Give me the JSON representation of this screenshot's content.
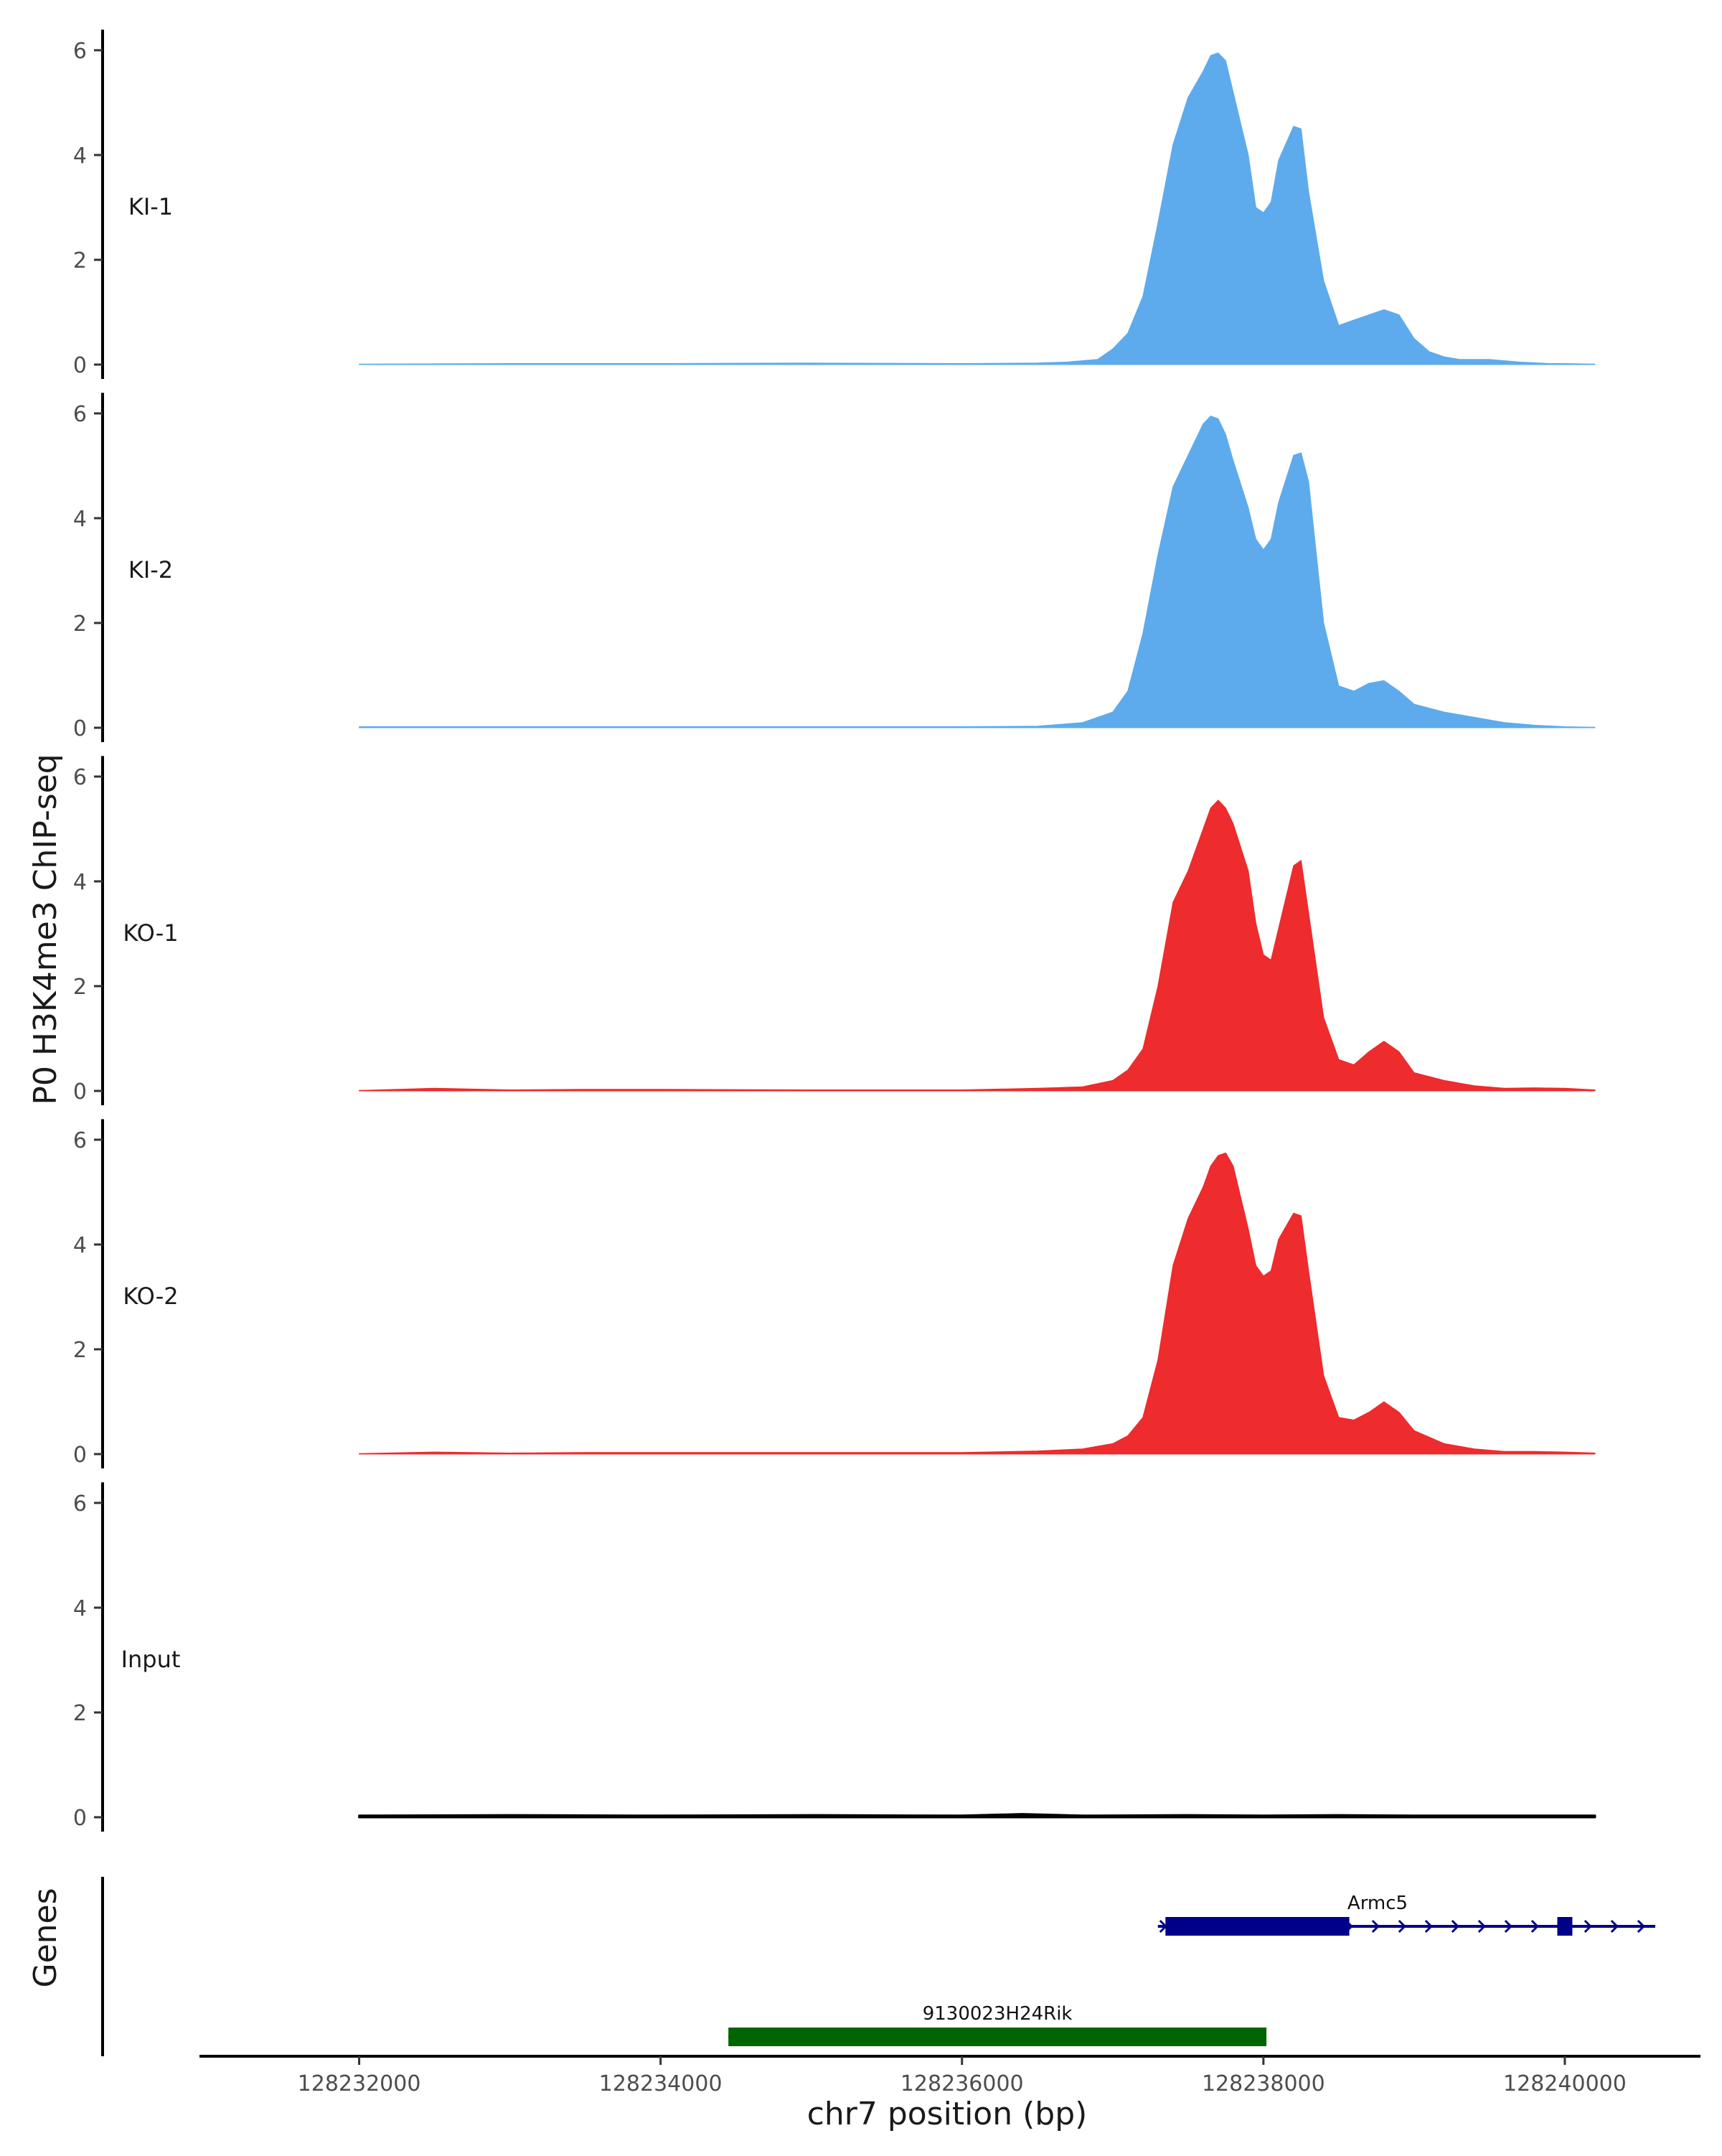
{
  "chart_data": {
    "type": "area",
    "title": "",
    "ylabel": "P0 H3K4me3 ChIP-seq",
    "xlabel": "chr7 position (bp)",
    "genes_label": "Genes",
    "xlim": [
      128230950,
      128240900
    ],
    "ylim": [
      0,
      6.2
    ],
    "x_ticks": [
      128232000,
      128234000,
      128236000,
      128238000,
      128240000
    ],
    "x_tick_labels": [
      "128232000",
      "128234000",
      "128236000",
      "128238000",
      "128240000"
    ],
    "y_ticks": [
      0,
      2,
      4,
      6
    ],
    "y_tick_labels": [
      "0",
      "2",
      "4",
      "6"
    ],
    "colors": {
      "KI": "#5dabec",
      "KO": "#ee2b2d",
      "Input": "#000000",
      "gene_blue": "#00008b",
      "gene_green": "#006400"
    },
    "series": [
      {
        "name": "KI-1",
        "color": "#5dabec",
        "x": [
          128232000,
          128233000,
          128234000,
          128235000,
          128236000,
          128236500,
          128236700,
          128236900,
          128237000,
          128237100,
          128237200,
          128237300,
          128237400,
          128237500,
          128237600,
          128237650,
          128237700,
          128237750,
          128237800,
          128237900,
          128237950,
          128238000,
          128238050,
          128238100,
          128238200,
          128238250,
          128238300,
          128238400,
          128238500,
          128238600,
          128238700,
          128238800,
          128238900,
          128239000,
          128239100,
          128239200,
          128239300,
          128239500,
          128239700,
          128239900,
          128240000,
          128240200
        ],
        "values": [
          0.01,
          0.02,
          0.02,
          0.03,
          0.02,
          0.03,
          0.05,
          0.1,
          0.3,
          0.6,
          1.3,
          2.7,
          4.2,
          5.1,
          5.6,
          5.9,
          5.95,
          5.8,
          5.2,
          4.0,
          3.0,
          2.9,
          3.1,
          3.9,
          4.55,
          4.5,
          3.3,
          1.6,
          0.75,
          0.85,
          0.95,
          1.05,
          0.95,
          0.5,
          0.25,
          0.15,
          0.1,
          0.1,
          0.05,
          0.02,
          0.02,
          0.01
        ]
      },
      {
        "name": "KI-2",
        "color": "#5dabec",
        "x": [
          128232000,
          128233000,
          128234000,
          128235000,
          128236000,
          128236500,
          128236800,
          128237000,
          128237100,
          128237200,
          128237300,
          128237400,
          128237500,
          128237600,
          128237650,
          128237700,
          128237750,
          128237800,
          128237900,
          128237950,
          128238000,
          128238050,
          128238100,
          128238200,
          128238250,
          128238300,
          128238400,
          128238500,
          128238600,
          128238700,
          128238800,
          128238900,
          128239000,
          128239200,
          128239400,
          128239600,
          128239800,
          128240000,
          128240200
        ],
        "values": [
          0.02,
          0.02,
          0.02,
          0.02,
          0.02,
          0.03,
          0.1,
          0.3,
          0.7,
          1.8,
          3.3,
          4.6,
          5.2,
          5.8,
          5.95,
          5.9,
          5.6,
          5.1,
          4.2,
          3.6,
          3.4,
          3.6,
          4.3,
          5.2,
          5.25,
          4.7,
          2.0,
          0.8,
          0.7,
          0.85,
          0.9,
          0.7,
          0.45,
          0.3,
          0.2,
          0.1,
          0.05,
          0.02,
          0.01
        ]
      },
      {
        "name": "KO-1",
        "color": "#ee2b2d",
        "x": [
          128232000,
          128232500,
          128233000,
          128233500,
          128234000,
          128235000,
          128236000,
          128236500,
          128236800,
          128237000,
          128237100,
          128237200,
          128237300,
          128237400,
          128237500,
          128237600,
          128237650,
          128237700,
          128237750,
          128237800,
          128237900,
          128237950,
          128238000,
          128238050,
          128238100,
          128238200,
          128238250,
          128238300,
          128238400,
          128238500,
          128238600,
          128238700,
          128238800,
          128238900,
          128239000,
          128239200,
          128239400,
          128239600,
          128239800,
          128240000,
          128240200
        ],
        "values": [
          0.01,
          0.05,
          0.02,
          0.03,
          0.03,
          0.02,
          0.02,
          0.05,
          0.08,
          0.2,
          0.4,
          0.8,
          2.0,
          3.6,
          4.2,
          5.0,
          5.4,
          5.55,
          5.4,
          5.1,
          4.2,
          3.2,
          2.6,
          2.5,
          3.1,
          4.3,
          4.4,
          3.4,
          1.4,
          0.6,
          0.5,
          0.75,
          0.95,
          0.75,
          0.35,
          0.2,
          0.1,
          0.05,
          0.06,
          0.05,
          0.02
        ]
      },
      {
        "name": "KO-2",
        "color": "#ee2b2d",
        "x": [
          128232000,
          128232500,
          128233000,
          128233500,
          128234000,
          128235000,
          128236000,
          128236500,
          128236800,
          128237000,
          128237100,
          128237200,
          128237300,
          128237400,
          128237500,
          128237600,
          128237650,
          128237700,
          128237750,
          128237800,
          128237900,
          128237950,
          128238000,
          128238050,
          128238100,
          128238200,
          128238250,
          128238300,
          128238400,
          128238500,
          128238600,
          128238700,
          128238800,
          128238900,
          128239000,
          128239200,
          128239400,
          128239600,
          128239800,
          128240000,
          128240200
        ],
        "values": [
          0.01,
          0.04,
          0.02,
          0.03,
          0.03,
          0.03,
          0.03,
          0.06,
          0.1,
          0.2,
          0.35,
          0.7,
          1.8,
          3.6,
          4.5,
          5.1,
          5.5,
          5.7,
          5.75,
          5.5,
          4.3,
          3.6,
          3.4,
          3.5,
          4.1,
          4.6,
          4.55,
          3.5,
          1.5,
          0.7,
          0.65,
          0.8,
          1.0,
          0.8,
          0.45,
          0.2,
          0.1,
          0.05,
          0.05,
          0.04,
          0.02
        ]
      },
      {
        "name": "Input",
        "color": "#000000",
        "x": [
          128232000,
          128233000,
          128234000,
          128235000,
          128236000,
          128236400,
          128236800,
          128237500,
          128238000,
          128238500,
          128239000,
          128239500,
          128240000,
          128240200
        ],
        "values": [
          0.03,
          0.04,
          0.03,
          0.04,
          0.03,
          0.06,
          0.03,
          0.04,
          0.03,
          0.04,
          0.03,
          0.03,
          0.03,
          0.03
        ]
      }
    ],
    "genes": [
      {
        "name": "Armc5",
        "color": "#00008b",
        "strand": "+",
        "start": 128237300,
        "end": 128240600,
        "exons": [
          {
            "start": 128237350,
            "end": 128238570
          },
          {
            "start": 128239950,
            "end": 128240050
          }
        ]
      },
      {
        "name": "9130023H24Rik",
        "color": "#006400",
        "strand": "+",
        "start": 128234450,
        "end": 128238020,
        "exons": [
          {
            "start": 128234450,
            "end": 128238020
          }
        ]
      }
    ]
  }
}
